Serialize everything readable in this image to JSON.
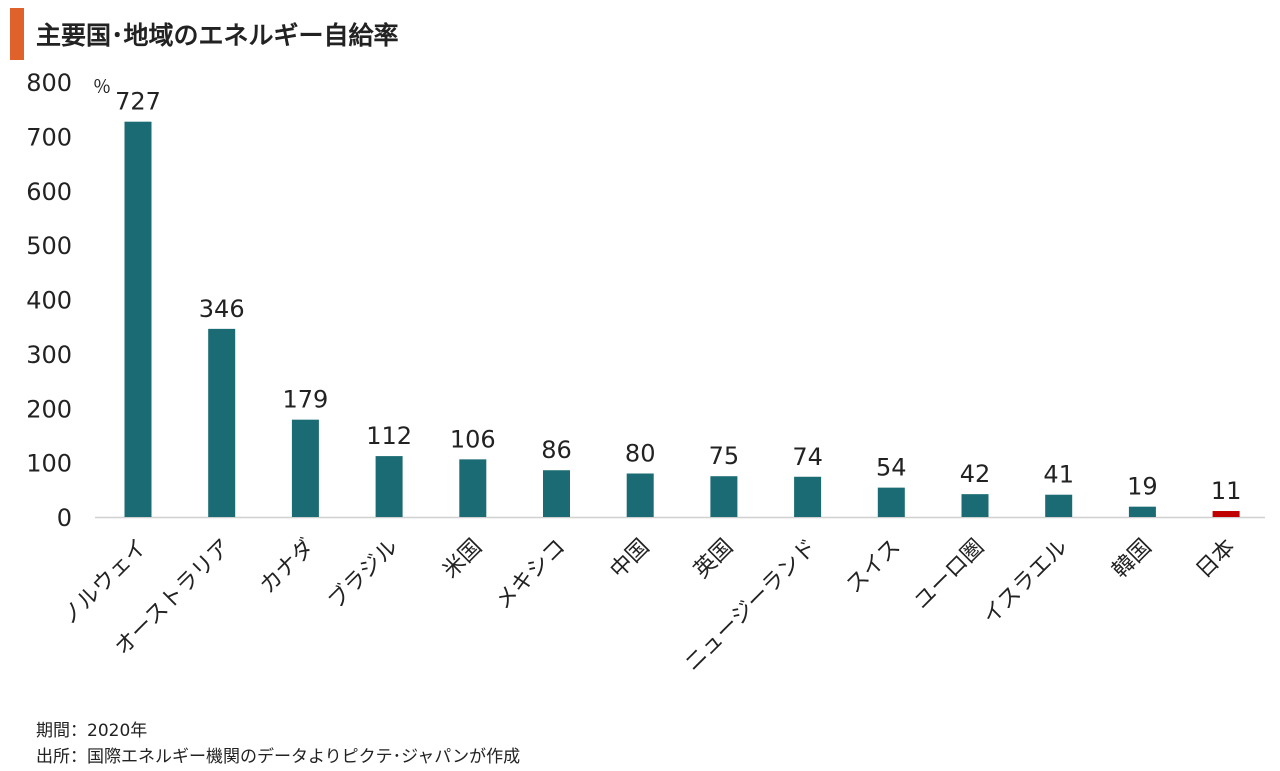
{
  "title": "主要国･地域のエネルギー自給率",
  "chart_data": {
    "type": "bar",
    "title": "主要国･地域のエネルギー自給率",
    "ylabel": "％",
    "ylim": [
      0,
      800
    ],
    "yticks": [
      "0",
      "100",
      "200",
      "300",
      "400",
      "500",
      "600",
      "700",
      "800"
    ],
    "categories": [
      "ノルウェイ",
      "オーストラリア",
      "カナダ",
      "ブラジル",
      "米国",
      "メキシコ",
      "中国",
      "英国",
      "ニュージーランド",
      "スイス",
      "ユーロ圏",
      "イスラエル",
      "韓国",
      "日本"
    ],
    "values": [
      727,
      346,
      179,
      112,
      106,
      86,
      80,
      75,
      74,
      54,
      42,
      41,
      19,
      11
    ],
    "value_labels": [
      "727",
      "346",
      "179",
      "112",
      "106",
      "86",
      "80",
      "75",
      "74",
      "54",
      "42",
      "41",
      "19",
      "11"
    ],
    "bar_color": "#1a6b73",
    "highlight_category": "日本",
    "highlight_color": "#c00000",
    "grid": false
  },
  "footnotes": {
    "period": "期間：2020年",
    "source": "出所：国際エネルギー機関のデータよりピクテ･ジャパンが作成"
  },
  "accent_color": "#e0622a"
}
